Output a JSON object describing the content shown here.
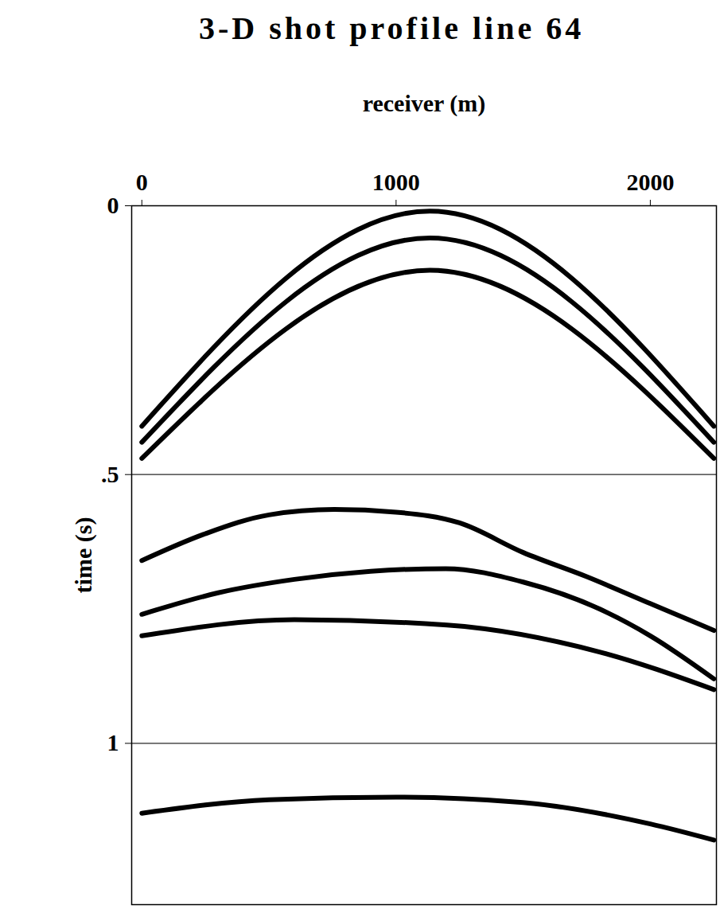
{
  "chart_data": {
    "type": "line",
    "title": "3-D shot profile line 64",
    "x_label": "receiver (m)",
    "y_label": "time (s)",
    "xlim": [
      -40,
      2260
    ],
    "ylim": [
      0,
      1.3
    ],
    "xticks": [
      0,
      1000,
      2000
    ],
    "yticks": [
      0,
      {
        "value": 0.5,
        "label": ".5"
      },
      1
    ],
    "grid": true,
    "color": "#000000",
    "series": [
      {
        "x": [
          0,
          1133,
          2250
        ],
        "values": [
          0.41,
          0.01,
          0.41
        ]
      },
      {
        "x": [
          0,
          1133,
          2250
        ],
        "values": [
          0.44,
          0.06,
          0.44
        ]
      },
      {
        "x": [
          0,
          1133,
          2250
        ],
        "values": [
          0.47,
          0.12,
          0.47
        ]
      },
      {
        "x": [
          0,
          250,
          500,
          757,
          1000,
          1250,
          1500,
          1750,
          2000,
          2250
        ],
        "values": [
          0.66,
          0.61,
          0.575,
          0.565,
          0.57,
          0.59,
          0.645,
          0.69,
          0.74,
          0.79
        ]
      },
      {
        "x": [
          0,
          300,
          600,
          900,
          1195,
          1500,
          1800,
          2000,
          2250
        ],
        "values": [
          0.76,
          0.72,
          0.695,
          0.68,
          0.675,
          0.7,
          0.75,
          0.8,
          0.88
        ]
      },
      {
        "x": [
          0,
          600,
          1200,
          1800,
          2250
        ],
        "values": [
          0.8,
          0.77,
          0.78,
          0.83,
          0.9
        ]
      },
      {
        "x": [
          0,
          500,
          1000,
          1500,
          2000,
          2250
        ],
        "values": [
          1.13,
          1.105,
          1.1,
          1.11,
          1.15,
          1.18
        ]
      }
    ]
  }
}
